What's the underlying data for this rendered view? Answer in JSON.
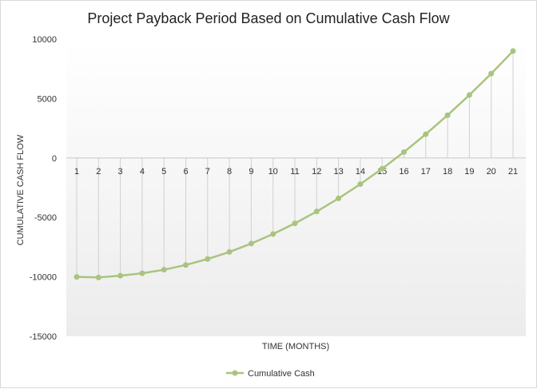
{
  "chart_data": {
    "type": "line",
    "title": "Project Payback Period Based on Cumulative Cash Flow",
    "xlabel": "TIME (MONTHS)",
    "ylabel": "CUMULATIVE CASH FLOW",
    "ylim": [
      -15000,
      10000
    ],
    "yticks": [
      10000,
      5000,
      0,
      -5000,
      -10000,
      -15000
    ],
    "categories": [
      "1",
      "2",
      "3",
      "4",
      "5",
      "6",
      "7",
      "8",
      "9",
      "10",
      "11",
      "12",
      "13",
      "14",
      "15",
      "16",
      "17",
      "18",
      "19",
      "20",
      "21"
    ],
    "series": [
      {
        "name": "Cumulative Cash",
        "color": "#a9c47f",
        "values": [
          -10000,
          -10050,
          -9900,
          -9700,
          -9400,
          -9000,
          -8500,
          -7900,
          -7200,
          -6400,
          -5500,
          -4500,
          -3400,
          -2200,
          -900,
          500,
          2000,
          3600,
          5300,
          7100,
          9000
        ]
      }
    ],
    "drop_lines": true,
    "grid": false,
    "legend_position": "bottom"
  }
}
